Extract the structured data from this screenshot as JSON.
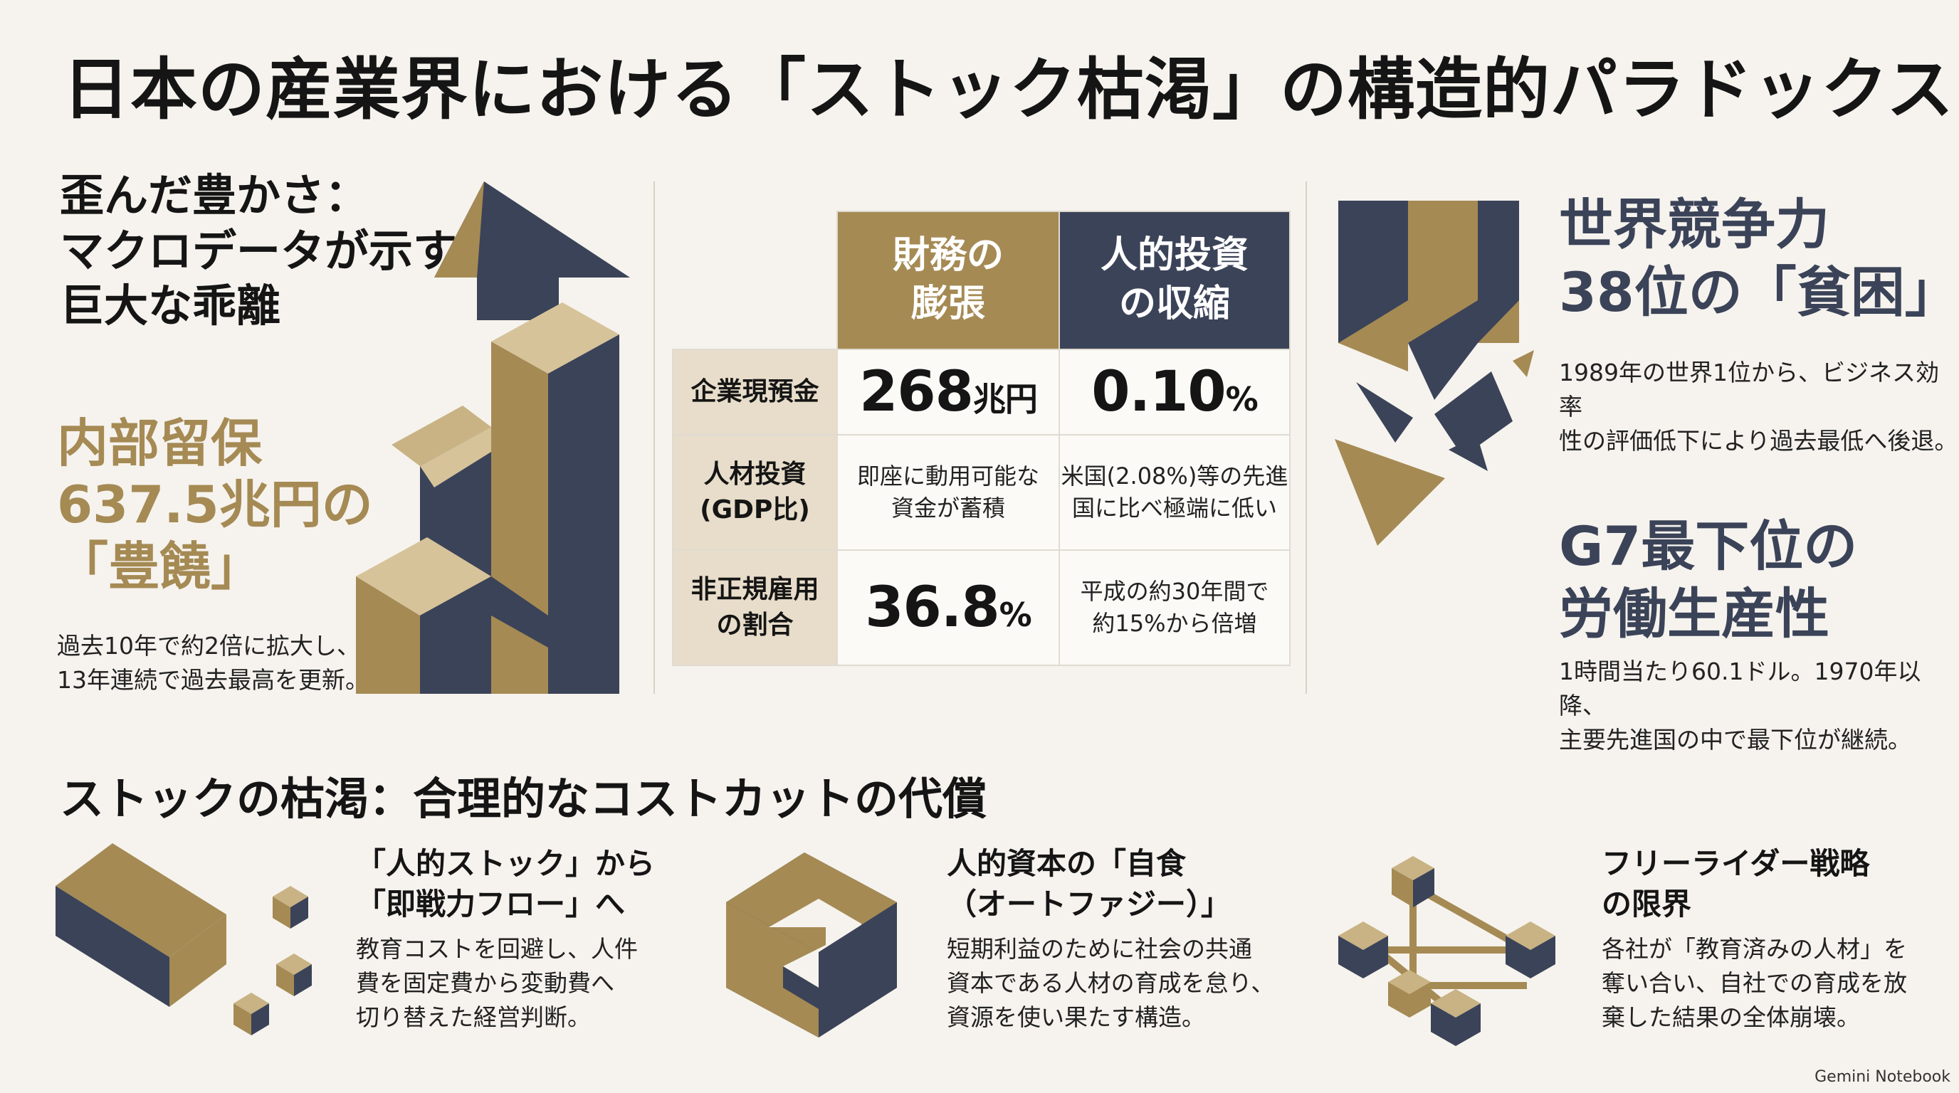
{
  "title": "日本の産業界における「ストック枯渇」の構造的パラドックス",
  "left": {
    "heading": "歪んだ豊かさ：\nマクロデータが示す\n巨大な乖離",
    "reserve_label": "内部留保\n637.5兆円の\n「豊饒」",
    "reserve_sub": "過去10年で約2倍に拡大し、\n13年連続で過去最高を更新。"
  },
  "table": {
    "col_finance": "財務の\n膨張",
    "col_human": "人的投資\nの収縮",
    "rows": [
      {
        "label": "企業現預金",
        "finance_value": "268",
        "finance_unit": "兆円",
        "human_value": "0.10",
        "human_unit": "%"
      },
      {
        "label": "人材投資\n(GDP比)",
        "finance_text": "即座に動用可能な\n資金が蓄積",
        "human_text": "米国(2.08%)等の先進\n国に比べ極端に低い"
      },
      {
        "label": "非正規雇用\nの割合",
        "finance_value": "36.8",
        "finance_unit": "%",
        "human_text": "平成の約30年間で\n約15%から倍増"
      }
    ]
  },
  "right": {
    "competitiveness_heading": "世界競争力\n38位の「貧困」",
    "competitiveness_text": "1989年の世界1位から、ビジネス効率\n性の評価低下により過去最低へ後退。",
    "productivity_heading": "G7最下位の\n労働生産性",
    "productivity_text": "1時間当たり60.1ドル。1970年以降、\n主要先進国の中で最下位が継続。"
  },
  "bottom": {
    "title": "ストックの枯渇：合理的なコストカットの代償",
    "items": [
      {
        "heading": "「人的ストック」から\n「即戦力フロー」へ",
        "text": "教育コストを回避し、人件\n費を固定費から変動費へ\n切り替えた経営判断。"
      },
      {
        "heading": "人的資本の「自食\n（オートファジー）」",
        "text": "短期利益のために社会の共通\n資本である人材の育成を怠り、\n資源を使い果たす構造。"
      },
      {
        "heading": "フリーライダー戦略\nの限界",
        "text": "各社が「教育済みの人材」を\n奪い合い、自社での育成を放\n棄した結果の全体崩壊。"
      }
    ]
  },
  "watermark": "Gemini Notebook",
  "colors": {
    "gold": "#a58a54",
    "navy": "#3b4358",
    "light_gold": "#e8ddca",
    "background": "#f6f3ee"
  },
  "icons": [
    "isometric-staircase-arrow-icon",
    "broken-blocks-icon",
    "bar-and-cubes-icon",
    "hollow-c-block-icon",
    "cube-network-icon"
  ]
}
